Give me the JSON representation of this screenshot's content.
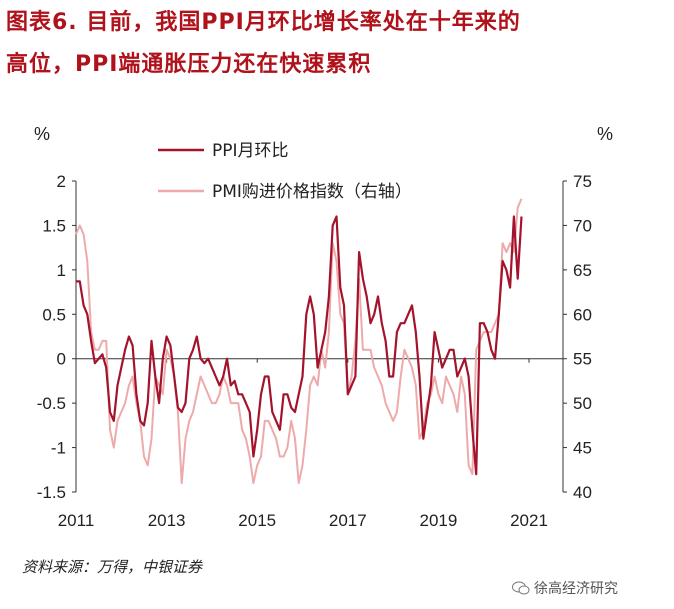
{
  "title_line1": "图表6.  目前，我国PPI月环比增长率处在十年来的",
  "title_line2": "高位，PPI端通胀压力还在快速累积",
  "source": "资料来源：万得，中银证券",
  "watermark": "徐高经济研究",
  "watermark_icon": "wechat-icon",
  "colors": {
    "ppi": "#a3132c",
    "pmi": "#eeaaaa",
    "title": "#b0121b"
  },
  "chart_data": {
    "type": "line",
    "title": "",
    "y_left": {
      "label": "%",
      "range": [
        -1.5,
        2
      ],
      "ticks": [
        "2",
        "1.5",
        "1",
        "0.5",
        "0",
        "-0.5",
        "-1",
        "-1.5"
      ]
    },
    "y_right": {
      "label": "%",
      "range": [
        40,
        75
      ],
      "ticks": [
        "75",
        "70",
        "65",
        "60",
        "55",
        "50",
        "45",
        "40"
      ]
    },
    "x_range": [
      2011.0,
      2021.75
    ],
    "x_ticks": [
      "2011",
      "2013",
      "2015",
      "2017",
      "2019",
      "2021"
    ],
    "grid": false,
    "legend_position": "top-center",
    "series": [
      {
        "name": "PPI月环比",
        "axis": "left",
        "x_start": 2011.0,
        "step": 0.0833333,
        "values": [
          0.87,
          0.87,
          0.6,
          0.5,
          0.2,
          -0.05,
          0.0,
          0.05,
          -0.1,
          -0.6,
          -0.7,
          -0.3,
          -0.1,
          0.1,
          0.25,
          0.15,
          -0.4,
          -0.7,
          -0.75,
          -0.5,
          0.2,
          -0.2,
          -0.5,
          0.0,
          0.25,
          0.15,
          -0.2,
          -0.55,
          -0.6,
          -0.5,
          0.0,
          0.1,
          0.25,
          0.0,
          -0.05,
          0.0,
          -0.1,
          -0.2,
          -0.3,
          -0.2,
          0.0,
          -0.3,
          -0.25,
          -0.4,
          -0.4,
          -0.5,
          -0.6,
          -1.1,
          -0.8,
          -0.4,
          -0.2,
          -0.2,
          -0.6,
          -0.7,
          -0.8,
          -0.4,
          -0.4,
          -0.55,
          -0.6,
          -0.4,
          -0.2,
          0.5,
          0.7,
          0.5,
          -0.1,
          0.1,
          0.3,
          0.7,
          1.5,
          1.6,
          0.8,
          0.6,
          -0.4,
          -0.3,
          -0.2,
          1.2,
          0.9,
          0.7,
          0.4,
          0.5,
          0.7,
          0.4,
          0.2,
          -0.2,
          -0.2,
          0.3,
          0.4,
          0.4,
          0.5,
          0.6,
          0.3,
          -0.2,
          -0.9,
          -0.6,
          -0.3,
          0.3,
          0.1,
          -0.1,
          0.0,
          0.1,
          0.1,
          -0.2,
          -0.1,
          0.0,
          -0.2,
          -0.8,
          -1.3,
          0.4,
          0.4,
          0.3,
          0.1,
          0.0,
          0.5,
          1.1,
          1.0,
          0.8,
          1.6,
          0.9,
          1.6
        ]
      },
      {
        "name": "PMI购进价格指数（右轴）",
        "axis": "right",
        "x_start": 2011.0,
        "step": 0.0833333,
        "values": [
          69,
          70,
          69,
          66,
          58,
          56,
          56,
          57,
          57,
          47,
          45,
          48,
          49,
          50,
          52,
          53,
          50,
          48,
          44,
          43,
          46,
          53,
          52,
          51,
          56,
          55,
          53,
          49,
          41,
          46,
          48,
          49,
          51,
          53,
          52,
          51,
          50,
          50,
          51,
          53,
          52,
          50,
          50,
          50,
          47,
          46,
          44,
          41,
          43,
          44,
          48,
          48,
          47,
          46,
          44,
          44,
          45,
          48,
          46,
          41,
          43,
          47,
          52,
          53,
          52,
          56,
          54,
          58,
          68,
          66,
          60,
          59,
          51,
          53,
          57,
          64,
          56,
          56,
          56,
          54,
          53,
          52,
          50,
          49,
          48,
          49,
          53,
          56,
          55,
          54,
          52,
          46,
          47,
          50,
          51,
          53,
          51,
          50,
          53,
          52,
          51,
          49,
          53,
          51,
          43,
          42,
          56,
          57,
          58,
          58,
          58,
          59,
          60,
          68,
          67,
          68,
          67,
          72,
          73
        ]
      }
    ]
  }
}
